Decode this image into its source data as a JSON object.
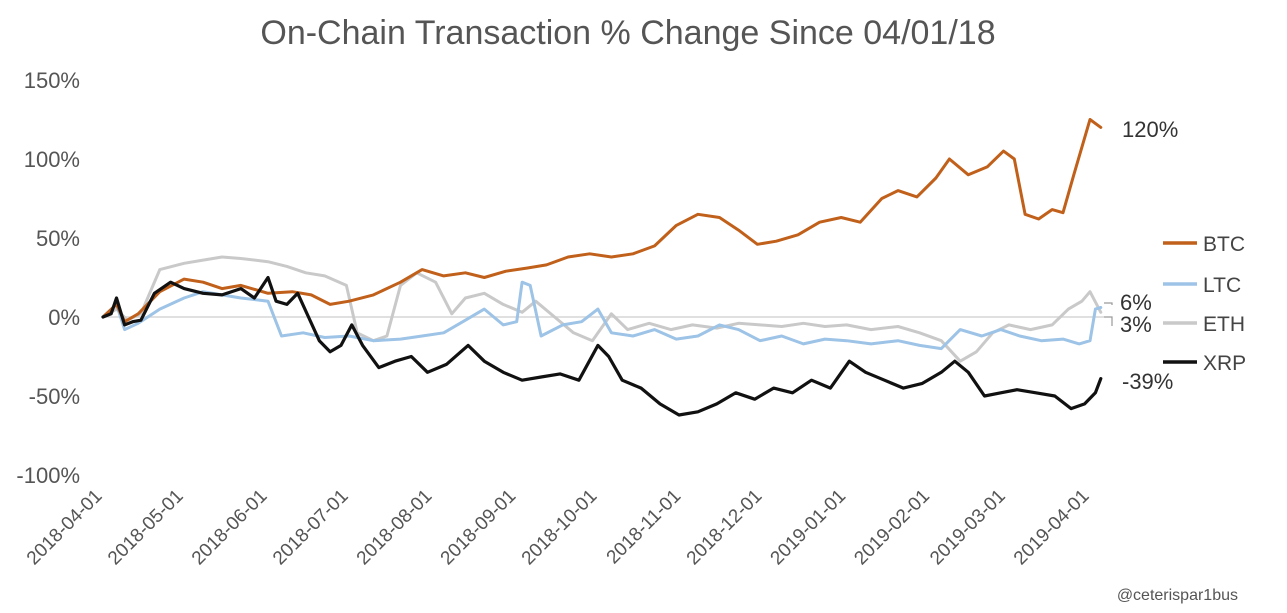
{
  "chart_data": {
    "type": "line",
    "title": "On-Chain Transaction % Change Since 04/01/18",
    "credit": "@ceterispar1bus",
    "y_ticks": [
      "150%",
      "100%",
      "50%",
      "0%",
      "-50%",
      "-100%"
    ],
    "y_tick_values": [
      150,
      100,
      50,
      0,
      -50,
      -100
    ],
    "ylim": [
      -100,
      150
    ],
    "x_ticks": [
      "2018-04-01",
      "2018-05-01",
      "2018-06-01",
      "2018-07-01",
      "2018-08-01",
      "2018-09-01",
      "2018-10-01",
      "2018-11-01",
      "2018-12-01",
      "2019-01-01",
      "2019-02-01",
      "2019-03-01",
      "2019-04-01"
    ],
    "xlim": [
      "2018-04-01",
      "2019-04-01"
    ],
    "legend_position": "right",
    "zero_line": true,
    "grid": false,
    "series": [
      {
        "name": "BTC",
        "color": "#C0601A",
        "end_label": "120%",
        "points": [
          [
            "2018-04-01",
            0
          ],
          [
            "2018-04-06",
            8
          ],
          [
            "2018-04-09",
            -3
          ],
          [
            "2018-04-14",
            2
          ],
          [
            "2018-04-22",
            16
          ],
          [
            "2018-05-01",
            24
          ],
          [
            "2018-05-08",
            22
          ],
          [
            "2018-05-15",
            18
          ],
          [
            "2018-05-22",
            20
          ],
          [
            "2018-06-01",
            15
          ],
          [
            "2018-06-10",
            16
          ],
          [
            "2018-06-17",
            14
          ],
          [
            "2018-06-24",
            8
          ],
          [
            "2018-07-01",
            10
          ],
          [
            "2018-07-10",
            14
          ],
          [
            "2018-07-20",
            22
          ],
          [
            "2018-07-28",
            30
          ],
          [
            "2018-08-05",
            26
          ],
          [
            "2018-08-13",
            28
          ],
          [
            "2018-08-20",
            25
          ],
          [
            "2018-08-28",
            29
          ],
          [
            "2018-09-05",
            31
          ],
          [
            "2018-09-12",
            33
          ],
          [
            "2018-09-20",
            38
          ],
          [
            "2018-09-28",
            40
          ],
          [
            "2018-10-06",
            38
          ],
          [
            "2018-10-14",
            40
          ],
          [
            "2018-10-22",
            45
          ],
          [
            "2018-10-30",
            58
          ],
          [
            "2018-11-07",
            65
          ],
          [
            "2018-11-15",
            63
          ],
          [
            "2018-11-22",
            55
          ],
          [
            "2018-11-29",
            46
          ],
          [
            "2018-12-06",
            48
          ],
          [
            "2018-12-14",
            52
          ],
          [
            "2018-12-22",
            60
          ],
          [
            "2018-12-30",
            63
          ],
          [
            "2019-01-06",
            60
          ],
          [
            "2019-01-14",
            75
          ],
          [
            "2019-01-20",
            80
          ],
          [
            "2019-01-27",
            76
          ],
          [
            "2019-02-03",
            88
          ],
          [
            "2019-02-08",
            100
          ],
          [
            "2019-02-15",
            90
          ],
          [
            "2019-02-22",
            95
          ],
          [
            "2019-02-28",
            105
          ],
          [
            "2019-03-04",
            100
          ],
          [
            "2019-03-08",
            65
          ],
          [
            "2019-03-13",
            62
          ],
          [
            "2019-03-18",
            68
          ],
          [
            "2019-03-22",
            66
          ],
          [
            "2019-03-26",
            90
          ],
          [
            "2019-04-01",
            125
          ],
          [
            "2019-04-05",
            120
          ]
        ]
      },
      {
        "name": "LTC",
        "color": "#9DC3E6",
        "end_label": "6%",
        "points": [
          [
            "2018-04-01",
            0
          ],
          [
            "2018-04-06",
            8
          ],
          [
            "2018-04-09",
            -8
          ],
          [
            "2018-04-14",
            -4
          ],
          [
            "2018-04-22",
            5
          ],
          [
            "2018-05-01",
            12
          ],
          [
            "2018-05-08",
            16
          ],
          [
            "2018-05-15",
            14
          ],
          [
            "2018-05-22",
            12
          ],
          [
            "2018-06-01",
            10
          ],
          [
            "2018-06-06",
            -12
          ],
          [
            "2018-06-14",
            -10
          ],
          [
            "2018-06-22",
            -13
          ],
          [
            "2018-07-01",
            -12
          ],
          [
            "2018-07-10",
            -15
          ],
          [
            "2018-07-20",
            -14
          ],
          [
            "2018-07-28",
            -12
          ],
          [
            "2018-08-05",
            -10
          ],
          [
            "2018-08-13",
            -2
          ],
          [
            "2018-08-20",
            5
          ],
          [
            "2018-08-27",
            -5
          ],
          [
            "2018-09-01",
            -3
          ],
          [
            "2018-09-03",
            22
          ],
          [
            "2018-09-06",
            20
          ],
          [
            "2018-09-10",
            -12
          ],
          [
            "2018-09-18",
            -5
          ],
          [
            "2018-09-25",
            -3
          ],
          [
            "2018-10-01",
            5
          ],
          [
            "2018-10-06",
            -10
          ],
          [
            "2018-10-14",
            -12
          ],
          [
            "2018-10-22",
            -8
          ],
          [
            "2018-10-30",
            -14
          ],
          [
            "2018-11-07",
            -12
          ],
          [
            "2018-11-15",
            -5
          ],
          [
            "2018-11-22",
            -8
          ],
          [
            "2018-11-30",
            -15
          ],
          [
            "2018-12-08",
            -12
          ],
          [
            "2018-12-16",
            -17
          ],
          [
            "2018-12-24",
            -14
          ],
          [
            "2019-01-01",
            -15
          ],
          [
            "2019-01-10",
            -17
          ],
          [
            "2019-01-20",
            -15
          ],
          [
            "2019-01-28",
            -18
          ],
          [
            "2019-02-05",
            -20
          ],
          [
            "2019-02-12",
            -8
          ],
          [
            "2019-02-20",
            -12
          ],
          [
            "2019-02-27",
            -8
          ],
          [
            "2019-03-06",
            -12
          ],
          [
            "2019-03-14",
            -15
          ],
          [
            "2019-03-22",
            -14
          ],
          [
            "2019-03-28",
            -17
          ],
          [
            "2019-04-01",
            -15
          ],
          [
            "2019-04-03",
            5
          ],
          [
            "2019-04-05",
            6
          ]
        ]
      },
      {
        "name": "ETH",
        "color": "#C9C9C9",
        "end_label": "3%",
        "points": [
          [
            "2018-04-01",
            0
          ],
          [
            "2018-04-06",
            5
          ],
          [
            "2018-04-10",
            -2
          ],
          [
            "2018-04-15",
            2
          ],
          [
            "2018-04-22",
            30
          ],
          [
            "2018-05-01",
            34
          ],
          [
            "2018-05-08",
            36
          ],
          [
            "2018-05-15",
            38
          ],
          [
            "2018-05-22",
            37
          ],
          [
            "2018-06-01",
            35
          ],
          [
            "2018-06-08",
            32
          ],
          [
            "2018-06-15",
            28
          ],
          [
            "2018-06-22",
            26
          ],
          [
            "2018-06-30",
            20
          ],
          [
            "2018-07-04",
            -10
          ],
          [
            "2018-07-10",
            -15
          ],
          [
            "2018-07-15",
            -12
          ],
          [
            "2018-07-20",
            20
          ],
          [
            "2018-07-26",
            28
          ],
          [
            "2018-08-02",
            22
          ],
          [
            "2018-08-08",
            2
          ],
          [
            "2018-08-13",
            12
          ],
          [
            "2018-08-20",
            15
          ],
          [
            "2018-08-27",
            8
          ],
          [
            "2018-09-03",
            3
          ],
          [
            "2018-09-08",
            10
          ],
          [
            "2018-09-15",
            0
          ],
          [
            "2018-09-22",
            -10
          ],
          [
            "2018-09-29",
            -15
          ],
          [
            "2018-10-06",
            2
          ],
          [
            "2018-10-12",
            -8
          ],
          [
            "2018-10-20",
            -4
          ],
          [
            "2018-10-28",
            -8
          ],
          [
            "2018-11-05",
            -5
          ],
          [
            "2018-11-14",
            -7
          ],
          [
            "2018-11-22",
            -4
          ],
          [
            "2018-11-30",
            -5
          ],
          [
            "2018-12-08",
            -6
          ],
          [
            "2018-12-16",
            -4
          ],
          [
            "2018-12-24",
            -6
          ],
          [
            "2019-01-01",
            -5
          ],
          [
            "2019-01-10",
            -8
          ],
          [
            "2019-01-20",
            -6
          ],
          [
            "2019-01-28",
            -10
          ],
          [
            "2019-02-05",
            -15
          ],
          [
            "2019-02-12",
            -28
          ],
          [
            "2019-02-18",
            -22
          ],
          [
            "2019-02-24",
            -10
          ],
          [
            "2019-03-02",
            -5
          ],
          [
            "2019-03-10",
            -8
          ],
          [
            "2019-03-18",
            -5
          ],
          [
            "2019-03-24",
            5
          ],
          [
            "2019-03-29",
            10
          ],
          [
            "2019-04-01",
            16
          ],
          [
            "2019-04-05",
            3
          ]
        ]
      },
      {
        "name": "XRP",
        "color": "#111111",
        "end_label": "-39%",
        "points": [
          [
            "2018-04-01",
            0
          ],
          [
            "2018-04-04",
            2
          ],
          [
            "2018-04-06",
            12
          ],
          [
            "2018-04-09",
            -5
          ],
          [
            "2018-04-12",
            -3
          ],
          [
            "2018-04-15",
            -2
          ],
          [
            "2018-04-20",
            15
          ],
          [
            "2018-04-26",
            22
          ],
          [
            "2018-05-01",
            18
          ],
          [
            "2018-05-08",
            15
          ],
          [
            "2018-05-15",
            14
          ],
          [
            "2018-05-22",
            18
          ],
          [
            "2018-05-27",
            12
          ],
          [
            "2018-06-01",
            25
          ],
          [
            "2018-06-04",
            10
          ],
          [
            "2018-06-08",
            8
          ],
          [
            "2018-06-12",
            15
          ],
          [
            "2018-06-16",
            0
          ],
          [
            "2018-06-20",
            -15
          ],
          [
            "2018-06-24",
            -22
          ],
          [
            "2018-06-28",
            -18
          ],
          [
            "2018-07-02",
            -5
          ],
          [
            "2018-07-06",
            -18
          ],
          [
            "2018-07-12",
            -32
          ],
          [
            "2018-07-18",
            -28
          ],
          [
            "2018-07-24",
            -25
          ],
          [
            "2018-07-30",
            -35
          ],
          [
            "2018-08-06",
            -30
          ],
          [
            "2018-08-14",
            -18
          ],
          [
            "2018-08-20",
            -28
          ],
          [
            "2018-08-27",
            -35
          ],
          [
            "2018-09-03",
            -40
          ],
          [
            "2018-09-10",
            -38
          ],
          [
            "2018-09-17",
            -36
          ],
          [
            "2018-09-24",
            -40
          ],
          [
            "2018-10-01",
            -18
          ],
          [
            "2018-10-05",
            -25
          ],
          [
            "2018-10-10",
            -40
          ],
          [
            "2018-10-17",
            -45
          ],
          [
            "2018-10-24",
            -55
          ],
          [
            "2018-10-31",
            -62
          ],
          [
            "2018-11-07",
            -60
          ],
          [
            "2018-11-14",
            -55
          ],
          [
            "2018-11-21",
            -48
          ],
          [
            "2018-11-28",
            -52
          ],
          [
            "2018-12-05",
            -45
          ],
          [
            "2018-12-12",
            -48
          ],
          [
            "2018-12-19",
            -40
          ],
          [
            "2018-12-26",
            -45
          ],
          [
            "2019-01-02",
            -28
          ],
          [
            "2019-01-08",
            -35
          ],
          [
            "2019-01-15",
            -40
          ],
          [
            "2019-01-22",
            -45
          ],
          [
            "2019-01-29",
            -42
          ],
          [
            "2019-02-05",
            -35
          ],
          [
            "2019-02-10",
            -28
          ],
          [
            "2019-02-15",
            -35
          ],
          [
            "2019-02-21",
            -50
          ],
          [
            "2019-02-27",
            -48
          ],
          [
            "2019-03-05",
            -46
          ],
          [
            "2019-03-12",
            -48
          ],
          [
            "2019-03-19",
            -50
          ],
          [
            "2019-03-25",
            -58
          ],
          [
            "2019-03-30",
            -55
          ],
          [
            "2019-04-03",
            -48
          ],
          [
            "2019-04-05",
            -39
          ]
        ]
      }
    ]
  }
}
